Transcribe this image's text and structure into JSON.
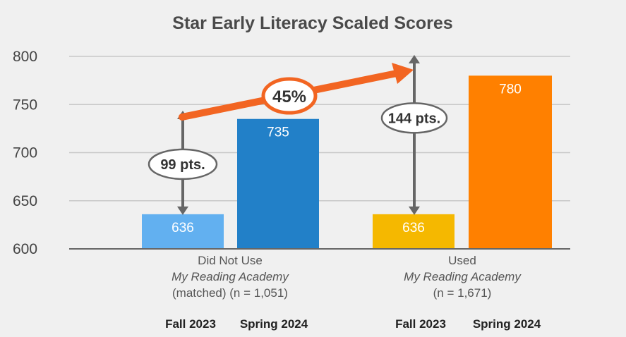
{
  "chart_data": {
    "type": "bar",
    "title": "Star Early Literacy Scaled Scores",
    "ylim": [
      600,
      800
    ],
    "yticks": [
      600,
      650,
      700,
      750,
      800
    ],
    "grid": true,
    "groups": [
      {
        "label_lines": [
          "Did Not Use",
          "My Reading Academy",
          "(matched) (n = 1,051)"
        ],
        "italic_line": 1,
        "bars": [
          {
            "season": "Fall 2023",
            "value": 636,
            "color": "#62b0f0"
          },
          {
            "season": "Spring 2024",
            "value": 735,
            "color": "#2280c8"
          }
        ],
        "gain": "99 pts."
      },
      {
        "label_lines": [
          "Used",
          "My Reading Academy",
          "(n = 1,671)"
        ],
        "italic_line": 1,
        "bars": [
          {
            "season": "Fall 2023",
            "value": 636,
            "color": "#f5b800"
          },
          {
            "season": "Spring 2024",
            "value": 780,
            "color": "#ff8000"
          }
        ],
        "gain": "144 pts."
      }
    ],
    "comparison": {
      "text": "45%",
      "color": "#f26522"
    }
  }
}
